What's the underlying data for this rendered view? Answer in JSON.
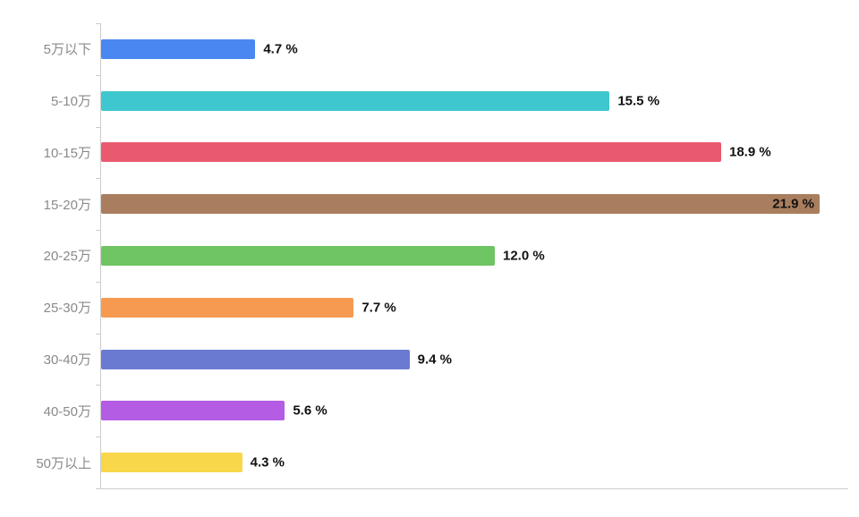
{
  "chart_data": {
    "type": "bar",
    "orientation": "horizontal",
    "title": "",
    "xlabel": "",
    "ylabel": "",
    "grid": false,
    "legend": false,
    "xlim": [
      0,
      22.8
    ],
    "categories": [
      "5万以下",
      "5-10万",
      "10-15万",
      "15-20万",
      "20-25万",
      "25-30万",
      "30-40万",
      "40-50万",
      "50万以上"
    ],
    "values": [
      4.7,
      15.5,
      18.9,
      21.9,
      12.0,
      7.7,
      9.4,
      5.6,
      4.3
    ],
    "value_labels": [
      "4.7 %",
      "15.5 %",
      "18.9 %",
      "21.9 %",
      "12.0 %",
      "7.7 %",
      "9.4 %",
      "5.6 %",
      "4.3 %"
    ],
    "colors": [
      "#4a87f0",
      "#3ec7ce",
      "#ea5a6e",
      "#a97e5e",
      "#6fc564",
      "#f69a52",
      "#6b7ad1",
      "#b45ce4",
      "#f8d74a"
    ],
    "axis_color": "#cccccc",
    "category_label_color": "#8a8a8a",
    "value_label_color": "#111111",
    "background_color": "#ffffff"
  }
}
